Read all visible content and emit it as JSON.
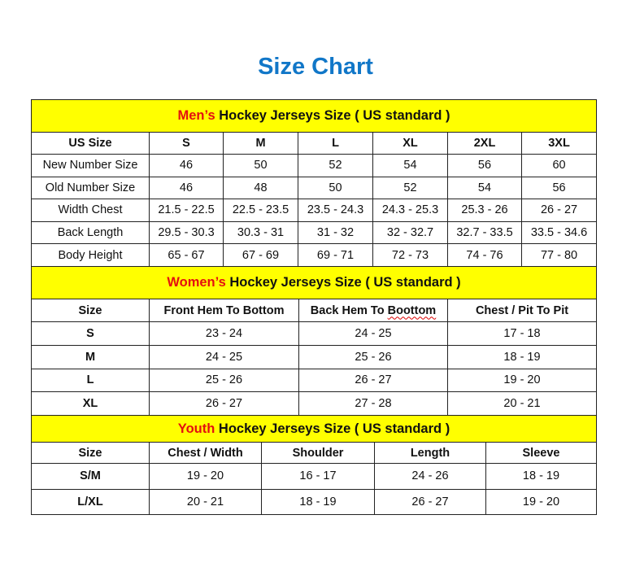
{
  "title": "Size Chart",
  "colors": {
    "title": "#1177c8",
    "banner": "#ffff00",
    "highlight": "#e41010"
  },
  "sections": [
    {
      "id": "men",
      "banner_highlight": "Men’s",
      "banner_rest": " Hockey Jerseys Size ( US standard )",
      "header": [
        "US Size",
        "S",
        "M",
        "L",
        "XL",
        "2XL",
        "3XL"
      ],
      "rows": [
        [
          "New Number Size",
          "46",
          "50",
          "52",
          "54",
          "56",
          "60"
        ],
        [
          "Old Number Size",
          "46",
          "48",
          "50",
          "52",
          "54",
          "56"
        ],
        [
          "Width Chest",
          "21.5 - 22.5",
          "22.5 - 23.5",
          "23.5 - 24.3",
          "24.3 - 25.3",
          "25.3 - 26",
          "26 - 27"
        ],
        [
          "Back Length",
          "29.5 - 30.3",
          "30.3 - 31",
          "31 - 32",
          "32 - 32.7",
          "32.7 - 33.5",
          "33.5 - 34.6"
        ],
        [
          "Body Height",
          "65 - 67",
          "67 - 69",
          "69 - 71",
          "72 - 73",
          "74 - 76",
          "77 - 80"
        ]
      ]
    },
    {
      "id": "women",
      "banner_highlight": "Women’s",
      "banner_rest": " Hockey Jerseys Size ( US standard )",
      "header": [
        "Size",
        "Front Hem To Bottom",
        "Back Hem To Boottom",
        "Chest / Pit To Pit"
      ],
      "rows": [
        [
          "S",
          "23 - 24",
          "24 - 25",
          "17 - 18"
        ],
        [
          "M",
          "24 - 25",
          "25 - 26",
          "18 - 19"
        ],
        [
          "L",
          "25 - 26",
          "26 - 27",
          "19 - 20"
        ],
        [
          "XL",
          "26 - 27",
          "27 - 28",
          "20 - 21"
        ]
      ]
    },
    {
      "id": "youth",
      "banner_highlight": "Youth",
      "banner_rest": " Hockey Jerseys Size ( US standard )",
      "header": [
        "Size",
        "Chest / Width",
        "Shoulder",
        "Length",
        "Sleeve"
      ],
      "rows": [
        [
          "S/M",
          "19 - 20",
          "16 - 17",
          "24 - 26",
          "18 - 19"
        ],
        [
          "L/XL",
          "20 - 21",
          "18 - 19",
          "26 - 27",
          "19 - 20"
        ]
      ]
    }
  ]
}
